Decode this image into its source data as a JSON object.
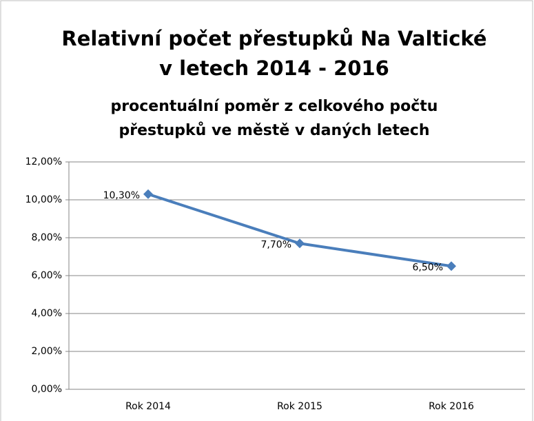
{
  "chart_data": {
    "type": "line",
    "title": [
      "Relativní počet přestupků Na Valtické",
      "v letech 2014 - 2016"
    ],
    "subtitle": [
      "procentuální poměr z celkového počtu",
      "přestupků ve městě v daných letech"
    ],
    "categories": [
      "Rok 2014",
      "Rok 2015",
      "Rok 2016"
    ],
    "series": [
      {
        "name": null,
        "color": "#4a7ebb",
        "values": [
          10.3,
          7.7,
          6.5
        ],
        "value_labels": [
          "10,30%",
          "7,70%",
          "6,50%"
        ]
      }
    ],
    "ylim": [
      0,
      12
    ],
    "yticks": [
      {
        "value": 0,
        "label": "0,00%"
      },
      {
        "value": 2,
        "label": "2,00%"
      },
      {
        "value": 4,
        "label": "4,00%"
      },
      {
        "value": 6,
        "label": "6,00%"
      },
      {
        "value": 8,
        "label": "8,00%"
      },
      {
        "value": 10,
        "label": "10,00%"
      },
      {
        "value": 12,
        "label": "12,00%"
      }
    ],
    "grid": true
  }
}
